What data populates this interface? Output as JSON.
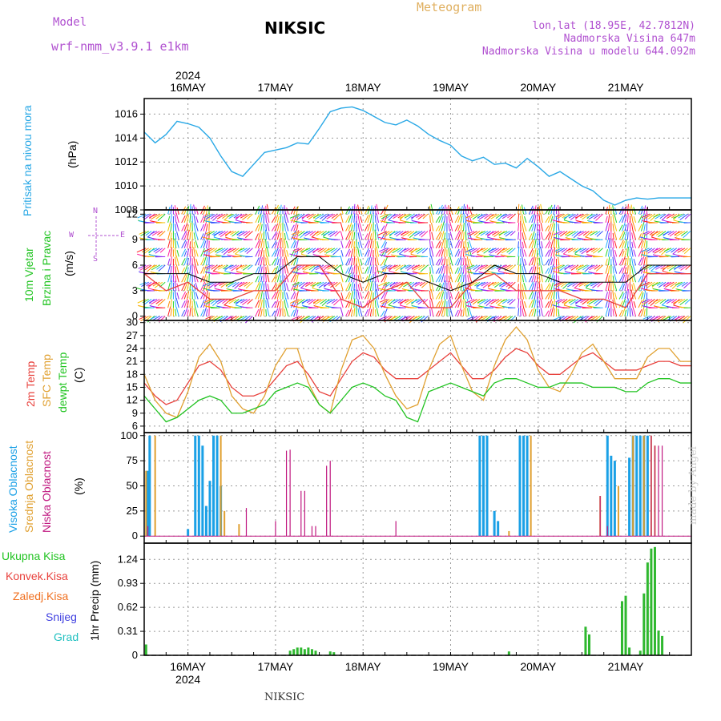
{
  "header": {
    "model_label": "Model",
    "model_name": "wrf-nmm_v3.9.1  e1km",
    "station": "NIKSIC",
    "meteogram_label": "Meteogram",
    "coords": "lon,lat (18.95E, 42.7812N)",
    "elevation": "Nadmorska Visina 647m",
    "model_elevation": "Nadmorska Visina u modelu 644.092m"
  },
  "footer": {
    "station": "NIKSIC",
    "watermark": "made by Angel"
  },
  "colors": {
    "pressure": "#29a8e6",
    "t2m": "#e8413c",
    "sfc": "#e0a030",
    "dewpt": "#22c422",
    "high_cloud": "#1aa0e6",
    "mid_cloud": "#e0a030",
    "low_cloud": "#c01880",
    "total_precip": "#2fb82f",
    "conv_precip": "#e8413c",
    "grid_precip": "#f07020",
    "snow": "#4040e0",
    "hail": "#20c0c0",
    "wind_avg": "#e8413c",
    "gust": "#000000"
  },
  "time_axis": {
    "year": "2024",
    "days": [
      "16MAY",
      "17MAY",
      "18MAY",
      "19MAY",
      "20MAY",
      "21MAY"
    ],
    "start_hour": 0,
    "end_hour": 150
  },
  "panels": {
    "pressure": {
      "label": "Pritisak na nivou mora",
      "unit": "(hPa)",
      "ticks": [
        "1016",
        "1014",
        "1012",
        "1010",
        "1008"
      ]
    },
    "wind": {
      "label1": "10m Vjetar",
      "label2": "Brzina i Pravac",
      "unit": "(m/s)",
      "ticks": [
        "12",
        "9",
        "6",
        "3",
        "0"
      ],
      "compass_n": "N",
      "compass_s": "S",
      "compass_e": "E",
      "compass_w": "W"
    },
    "temp": {
      "label1": "2m Temp",
      "label2": "SFC Temp",
      "label3": "dewpt Temp",
      "unit": "(C)",
      "ticks": [
        "30",
        "27",
        "24",
        "21",
        "18",
        "15",
        "12",
        "9",
        "6"
      ]
    },
    "cloud": {
      "label1": "Visoka Oblacnost",
      "label2": "Srednja Oblacnost",
      "label3": "Niska Oblacnost",
      "unit": "(%)",
      "ticks": [
        "100",
        "75",
        "50",
        "25",
        "0"
      ]
    },
    "precip": {
      "label1": "Ukupna Kisa",
      "label2": "Konvek.Kisa",
      "label3": "Zaledj.Kisa",
      "label4": "Snijeg",
      "label5": "Grad",
      "unit": "1hr Precip (mm)",
      "ticks": [
        "1.24",
        "0.93",
        "0.62",
        "0.31",
        "0"
      ]
    }
  },
  "chart_data": [
    {
      "type": "line",
      "title": "Pritisak na nivou mora",
      "ylabel": "(hPa)",
      "ylim": [
        1008,
        1017.3
      ],
      "x_hours": [
        0,
        3,
        6,
        9,
        12,
        15,
        18,
        21,
        24,
        27,
        30,
        33,
        36,
        39,
        42,
        45,
        48,
        51,
        54,
        57,
        60,
        63,
        66,
        69,
        72,
        75,
        78,
        81,
        84,
        87,
        90,
        93,
        96,
        99,
        102,
        105,
        108,
        111,
        114,
        117,
        120,
        123,
        126,
        129,
        132,
        135,
        138,
        141,
        144,
        147,
        150
      ],
      "series": [
        {
          "name": "Pressure",
          "values": [
            1014.5,
            1013.6,
            1014.3,
            1015.4,
            1015.2,
            1014.9,
            1014.0,
            1012.5,
            1011.2,
            1010.8,
            1011.8,
            1012.8,
            1013.0,
            1013.2,
            1013.6,
            1013.5,
            1014.8,
            1016.2,
            1016.5,
            1016.6,
            1016.3,
            1015.8,
            1015.3,
            1015.1,
            1015.5,
            1015.0,
            1014.3,
            1013.8,
            1013.4,
            1012.5,
            1012.1,
            1012.4,
            1011.8,
            1011.9,
            1011.5,
            1012.3,
            1011.6,
            1010.8,
            1011.2,
            1010.6,
            1010.0,
            1009.6,
            1008.8,
            1008.4,
            1008.8,
            1009.0,
            1008.9,
            1009.0,
            1009.0,
            1009.0,
            1009.0
          ]
        }
      ]
    },
    {
      "type": "line",
      "title": "10m Vjetar Brzina i Pravac",
      "ylabel": "(m/s)",
      "ylim": [
        -0.5,
        12.5
      ],
      "x_hours": [
        0,
        6,
        12,
        18,
        24,
        30,
        36,
        42,
        48,
        54,
        60,
        66,
        72,
        78,
        84,
        90,
        96,
        102,
        108,
        114,
        120,
        126,
        132,
        138,
        144,
        150
      ],
      "series": [
        {
          "name": "Wind speed",
          "values": [
            5,
            3,
            4,
            2,
            2,
            3,
            3,
            6,
            6,
            2,
            1,
            3,
            4,
            1,
            1,
            4,
            5,
            3,
            3,
            3,
            2,
            2,
            1,
            5,
            5,
            5
          ]
        },
        {
          "name": "Gust",
          "values": [
            5,
            5,
            5,
            4,
            4,
            5,
            5,
            7,
            7,
            5,
            4,
            5,
            5,
            4,
            3,
            4,
            6,
            5,
            5,
            4,
            4,
            4,
            4,
            6,
            6,
            6
          ]
        }
      ]
    },
    {
      "type": "line",
      "title": "Temperature",
      "ylabel": "(C)",
      "ylim": [
        4.5,
        30.5
      ],
      "x_hours": [
        0,
        3,
        6,
        9,
        12,
        15,
        18,
        21,
        24,
        27,
        30,
        33,
        36,
        39,
        42,
        45,
        48,
        51,
        54,
        57,
        60,
        63,
        66,
        69,
        72,
        75,
        78,
        81,
        84,
        87,
        90,
        93,
        96,
        99,
        102,
        105,
        108,
        111,
        114,
        117,
        120,
        123,
        126,
        129,
        132,
        135,
        138,
        141,
        144,
        147,
        150
      ],
      "series": [
        {
          "name": "2m Temp",
          "values": [
            16,
            13,
            11,
            12,
            16,
            20,
            21,
            19,
            15,
            13,
            13,
            14,
            17,
            20,
            21,
            18,
            14,
            13,
            17,
            21,
            23,
            22,
            19,
            17,
            17,
            17,
            19,
            21,
            23,
            20,
            17,
            17,
            19,
            22,
            24,
            23,
            20,
            18,
            18,
            20,
            22,
            23,
            21,
            19,
            19,
            19,
            20,
            21,
            21,
            20,
            20
          ]
        },
        {
          "name": "SFC Temp",
          "values": [
            18,
            12,
            9,
            8,
            14,
            22,
            25,
            21,
            13,
            10,
            9,
            13,
            20,
            24,
            24,
            16,
            11,
            9,
            19,
            26,
            27,
            24,
            18,
            13,
            10,
            11,
            19,
            25,
            27,
            20,
            14,
            12,
            20,
            26,
            29,
            26,
            19,
            15,
            14,
            18,
            23,
            25,
            21,
            17,
            17,
            17,
            22,
            24,
            24,
            21,
            21
          ]
        },
        {
          "name": "dewpt Temp",
          "values": [
            13,
            10,
            7,
            8,
            10,
            12,
            13,
            12,
            9,
            9,
            10,
            11,
            14,
            15,
            16,
            15,
            11,
            9,
            12,
            15,
            16,
            15,
            13,
            12,
            8,
            7,
            14,
            15,
            16,
            15,
            14,
            13,
            16,
            17,
            17,
            16,
            15,
            15,
            16,
            16,
            16,
            15,
            15,
            15,
            14,
            14,
            16,
            17,
            17,
            16,
            16
          ]
        }
      ]
    },
    {
      "type": "bar",
      "title": "Oblacnost",
      "ylabel": "(%)",
      "ylim": [
        0,
        100
      ],
      "series": [
        {
          "name": "Visoka Oblacnost",
          "points": [
            [
              1,
              65
            ],
            [
              1.5,
              100
            ],
            [
              12,
              7
            ],
            [
              14,
              100
            ],
            [
              15,
              100
            ],
            [
              16,
              90
            ],
            [
              17,
              30
            ],
            [
              18,
              55
            ],
            [
              19,
              100
            ],
            [
              20,
              100
            ],
            [
              21,
              50
            ],
            [
              92,
              100
            ],
            [
              93,
              100
            ],
            [
              94,
              100
            ],
            [
              96,
              25
            ],
            [
              97,
              15
            ],
            [
              103,
              100
            ],
            [
              104,
              100
            ],
            [
              105,
              100
            ],
            [
              127,
              100
            ],
            [
              128,
              80
            ],
            [
              129,
              75
            ],
            [
              133,
              78
            ],
            [
              134,
              100
            ],
            [
              135,
              100
            ],
            [
              136,
              100
            ],
            [
              137,
              100
            ],
            [
              138,
              100
            ]
          ]
        },
        {
          "name": "Srednja Oblacnost",
          "points": [
            [
              0.5,
              65
            ],
            [
              3,
              100
            ],
            [
              21,
              100
            ],
            [
              22,
              25
            ],
            [
              26,
              12
            ],
            [
              100,
              5
            ],
            [
              106,
              100
            ],
            [
              125,
              40
            ],
            [
              130,
              50
            ],
            [
              134,
              100
            ],
            [
              137,
              100
            ],
            [
              139,
              100
            ],
            [
              140,
              90
            ]
          ]
        },
        {
          "name": "Niska Oblacnost",
          "points": [
            [
              1,
              10
            ],
            [
              28,
              28
            ],
            [
              36,
              15
            ],
            [
              39,
              85
            ],
            [
              40,
              86
            ],
            [
              43,
              45
            ],
            [
              44,
              45
            ],
            [
              46,
              10
            ],
            [
              47,
              10
            ],
            [
              50,
              70
            ],
            [
              51,
              75
            ],
            [
              69,
              15
            ],
            [
              125,
              40
            ],
            [
              127,
              10
            ],
            [
              139,
              100
            ],
            [
              140,
              90
            ],
            [
              141,
              90
            ],
            [
              142,
              90
            ]
          ]
        }
      ]
    },
    {
      "type": "bar",
      "title": "1hr Precip",
      "ylabel": "1hr Precip (mm)",
      "ylim": [
        0,
        1.4
      ],
      "series": [
        {
          "name": "Ukupna Kisa",
          "points": [
            [
              0.5,
              0.14
            ],
            [
              40,
              0.06
            ],
            [
              41,
              0.08
            ],
            [
              42,
              0.1
            ],
            [
              43,
              0.1
            ],
            [
              44,
              0.08
            ],
            [
              45,
              0.1
            ],
            [
              46,
              0.08
            ],
            [
              47,
              0.06
            ],
            [
              51,
              0.05
            ],
            [
              52,
              0.04
            ],
            [
              100,
              0.05
            ],
            [
              121,
              0.37
            ],
            [
              122,
              0.27
            ],
            [
              131,
              0.7
            ],
            [
              132,
              0.77
            ],
            [
              133,
              0.1
            ],
            [
              136,
              0.06
            ],
            [
              137,
              0.8
            ],
            [
              138,
              1.2
            ],
            [
              139,
              1.38
            ],
            [
              140,
              1.4
            ],
            [
              141,
              0.32
            ],
            [
              142,
              0.25
            ]
          ]
        }
      ]
    }
  ]
}
